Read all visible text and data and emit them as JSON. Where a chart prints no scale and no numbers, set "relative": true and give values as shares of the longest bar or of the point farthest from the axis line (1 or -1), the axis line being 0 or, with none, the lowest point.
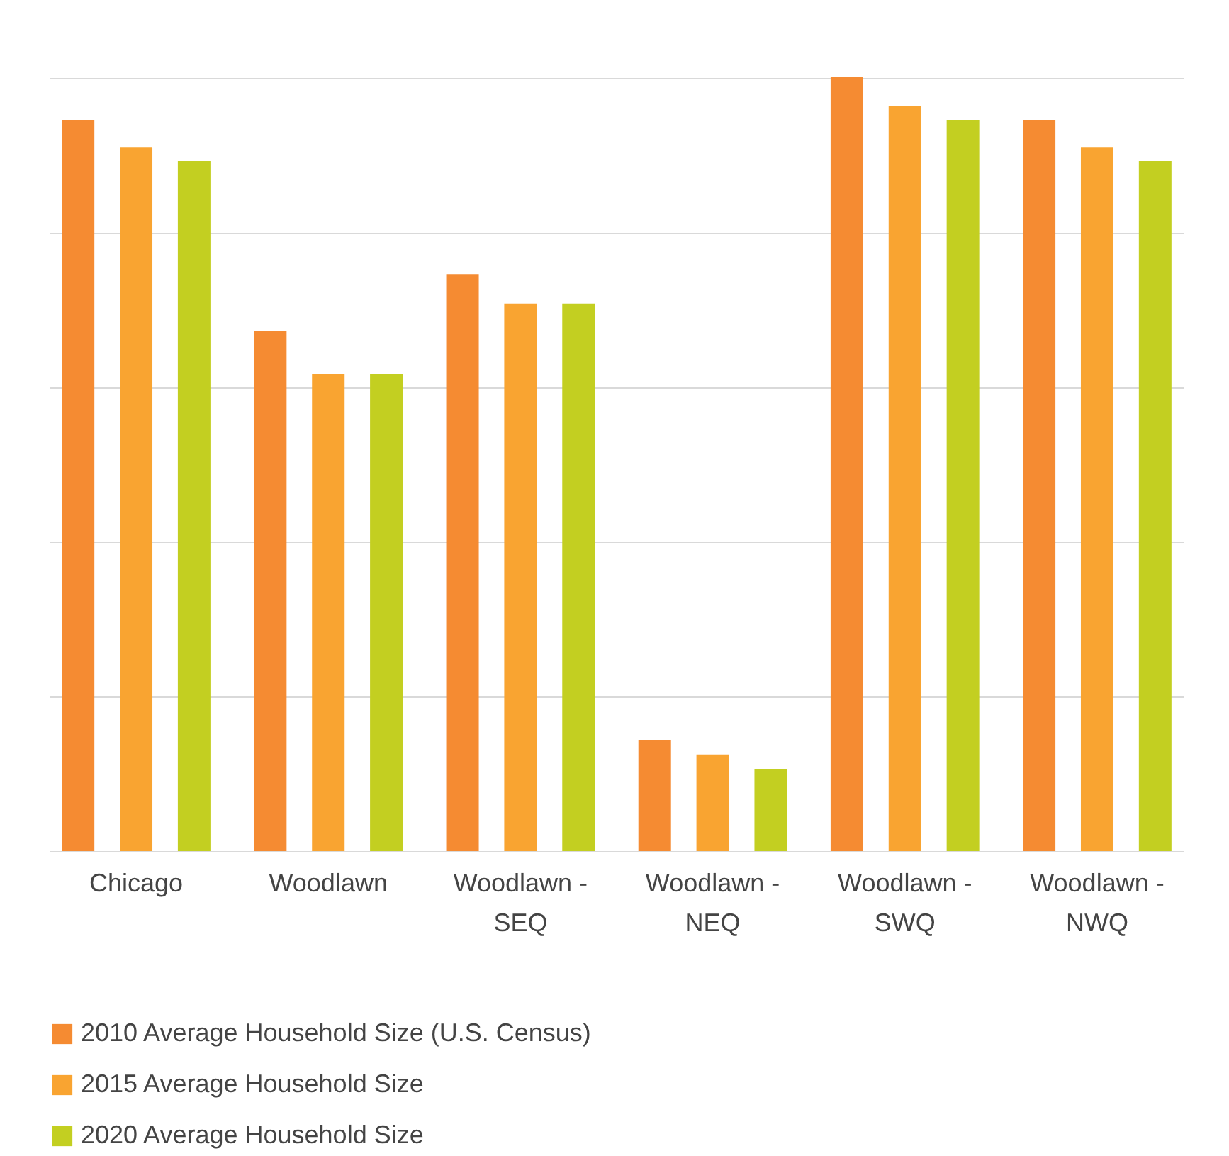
{
  "chart_data": {
    "type": "bar",
    "relative": true,
    "grid": "y",
    "legend": "bottom",
    "categories": [
      "Chicago",
      "Woodlawn",
      "Woodlawn - SEQ",
      "Woodlawn - NEQ",
      "Woodlawn - SWQ",
      "Woodlawn - NWQ"
    ],
    "series": [
      {
        "name": "2010 Average Household Size (U.S. Census)",
        "color": "#f58b32",
        "values": [
          0.945,
          0.672,
          0.745,
          0.143,
          1,
          0.945
        ]
      },
      {
        "name": "2015 Average Household Size",
        "color": "#f9a431",
        "values": [
          0.91,
          0.617,
          0.708,
          0.125,
          0.963,
          0.91
        ]
      },
      {
        "name": "2020 Average Household Size",
        "color": "#c3cf21",
        "values": [
          0.892,
          0.617,
          0.708,
          0.106,
          0.945,
          0.892
        ]
      }
    ]
  }
}
